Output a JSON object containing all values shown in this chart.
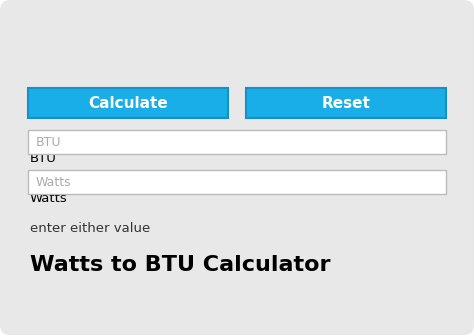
{
  "outer_bg": "#ffffff",
  "card_bg": "#e8e8e8",
  "title": "Watts to BTU Calculator",
  "title_fontsize": 16,
  "title_fontweight": "bold",
  "subtitle": "enter either value",
  "subtitle_fontsize": 9.5,
  "label_watts": "Watts",
  "label_btu": "BTU",
  "placeholder_watts": "Watts",
  "placeholder_btu": "BTU",
  "input_bg": "#ffffff",
  "input_border": "#bbbbbb",
  "input_text_color": "#aaaaaa",
  "input_fontsize": 9,
  "label_fontsize": 9.5,
  "label_fontweight": "normal",
  "btn_calculate_text": "Calculate",
  "btn_reset_text": "Reset",
  "btn_color": "#1aaee8",
  "btn_text_color": "#ffffff",
  "btn_fontsize": 11,
  "btn_fontweight": "bold"
}
